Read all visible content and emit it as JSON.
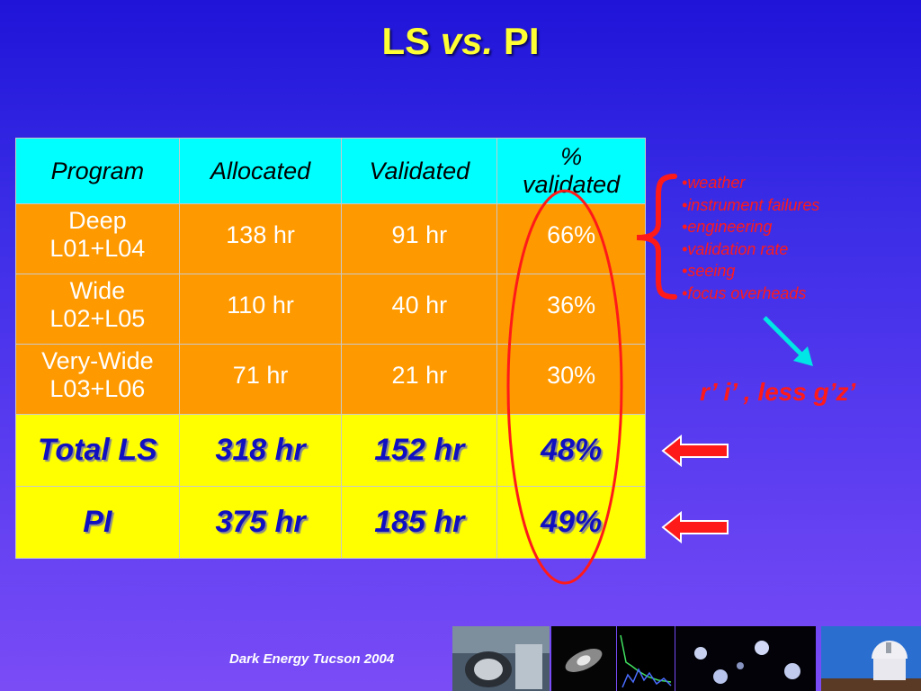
{
  "slide": {
    "title_main": "LS",
    "title_vs": "vs.",
    "title_tail": "PI"
  },
  "table": {
    "headers": [
      "Program",
      "Allocated",
      "Validated",
      "%\nvalidated"
    ],
    "rows": [
      {
        "program": "Deep\nL01+L04",
        "allocated": "138 hr",
        "validated": "91 hr",
        "percent": "66%"
      },
      {
        "program": "Wide\nL02+L05",
        "allocated": "110 hr",
        "validated": "40 hr",
        "percent": "36%"
      },
      {
        "program": "Very-Wide\nL03+L06",
        "allocated": "71 hr",
        "validated": "21 hr",
        "percent": "30%"
      }
    ],
    "totals": [
      {
        "program": "Total LS",
        "allocated": "318 hr",
        "validated": "152 hr",
        "percent": "48%"
      },
      {
        "program": "PI",
        "allocated": "375 hr",
        "validated": "185 hr",
        "percent": "49%"
      }
    ]
  },
  "causes": [
    "weather",
    "instrument failures",
    "engineering",
    "validation rate",
    "seeing",
    "focus overheads"
  ],
  "filter_note": "r’ i’ , less g’z’",
  "footer": "Dark Energy Tucson 2004",
  "colors": {
    "header_bg": "#00ffff",
    "row_bg": "#ff9900",
    "total_bg": "#ffff00",
    "accent_red": "#ff1a1a",
    "title_yellow": "#ffff33"
  }
}
